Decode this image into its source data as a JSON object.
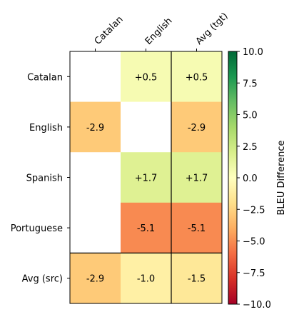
{
  "chart_data": {
    "type": "heatmap",
    "title": "",
    "columns": [
      "Catalan",
      "English",
      "Avg (tgt)"
    ],
    "rows": [
      "Catalan",
      "English",
      "Spanish",
      "Portuguese",
      "Avg (src)"
    ],
    "values": [
      [
        null,
        0.5,
        0.5
      ],
      [
        -2.9,
        null,
        -2.9
      ],
      [
        null,
        1.7,
        1.7
      ],
      [
        null,
        -5.1,
        -5.1
      ],
      [
        -2.9,
        -1.0,
        -1.5
      ]
    ],
    "labels": [
      [
        "",
        "+0.5",
        "+0.5"
      ],
      [
        "-2.9",
        "",
        "-2.9"
      ],
      [
        "",
        "+1.7",
        "+1.7"
      ],
      [
        "",
        "-5.1",
        "-5.1"
      ],
      [
        "-2.9",
        "-1.0",
        "-1.5"
      ]
    ],
    "colorbar": {
      "label": "BLEU Difference",
      "range": [
        -10.0,
        10.0
      ],
      "ticks": [
        10.0,
        7.5,
        5.0,
        2.5,
        0.0,
        -2.5,
        -5.0,
        -7.5,
        -10.0
      ],
      "tick_labels": [
        "10.0",
        "7.5",
        "5.0",
        "2.5",
        "0.0",
        "−2.5",
        "−5.0",
        "−7.5",
        "−10.0"
      ],
      "colormap": "RdYlGn"
    },
    "separators": [
      "before last column",
      "before last row"
    ],
    "grid": false
  }
}
